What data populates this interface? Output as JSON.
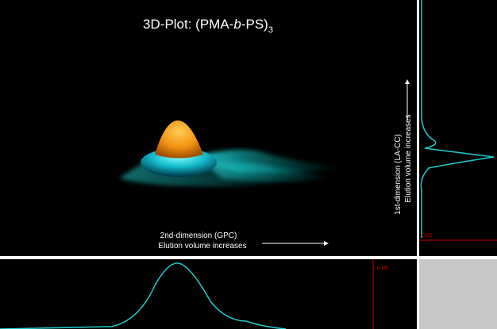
{
  "title": {
    "prefix": "3D-Plot: (PMA-",
    "italic": "b",
    "middle": "-PS)",
    "subscript": "3"
  },
  "x_axis": {
    "line1": "2nd-dimension (GPC)",
    "line2": "Elution volume increases"
  },
  "y_axis": {
    "line1": "1st-dimension (LA-CC)",
    "line2": "Elution volume increases"
  },
  "right_panel": {
    "label": "0.00"
  },
  "bottom_panel": {
    "label": "0.00"
  }
}
